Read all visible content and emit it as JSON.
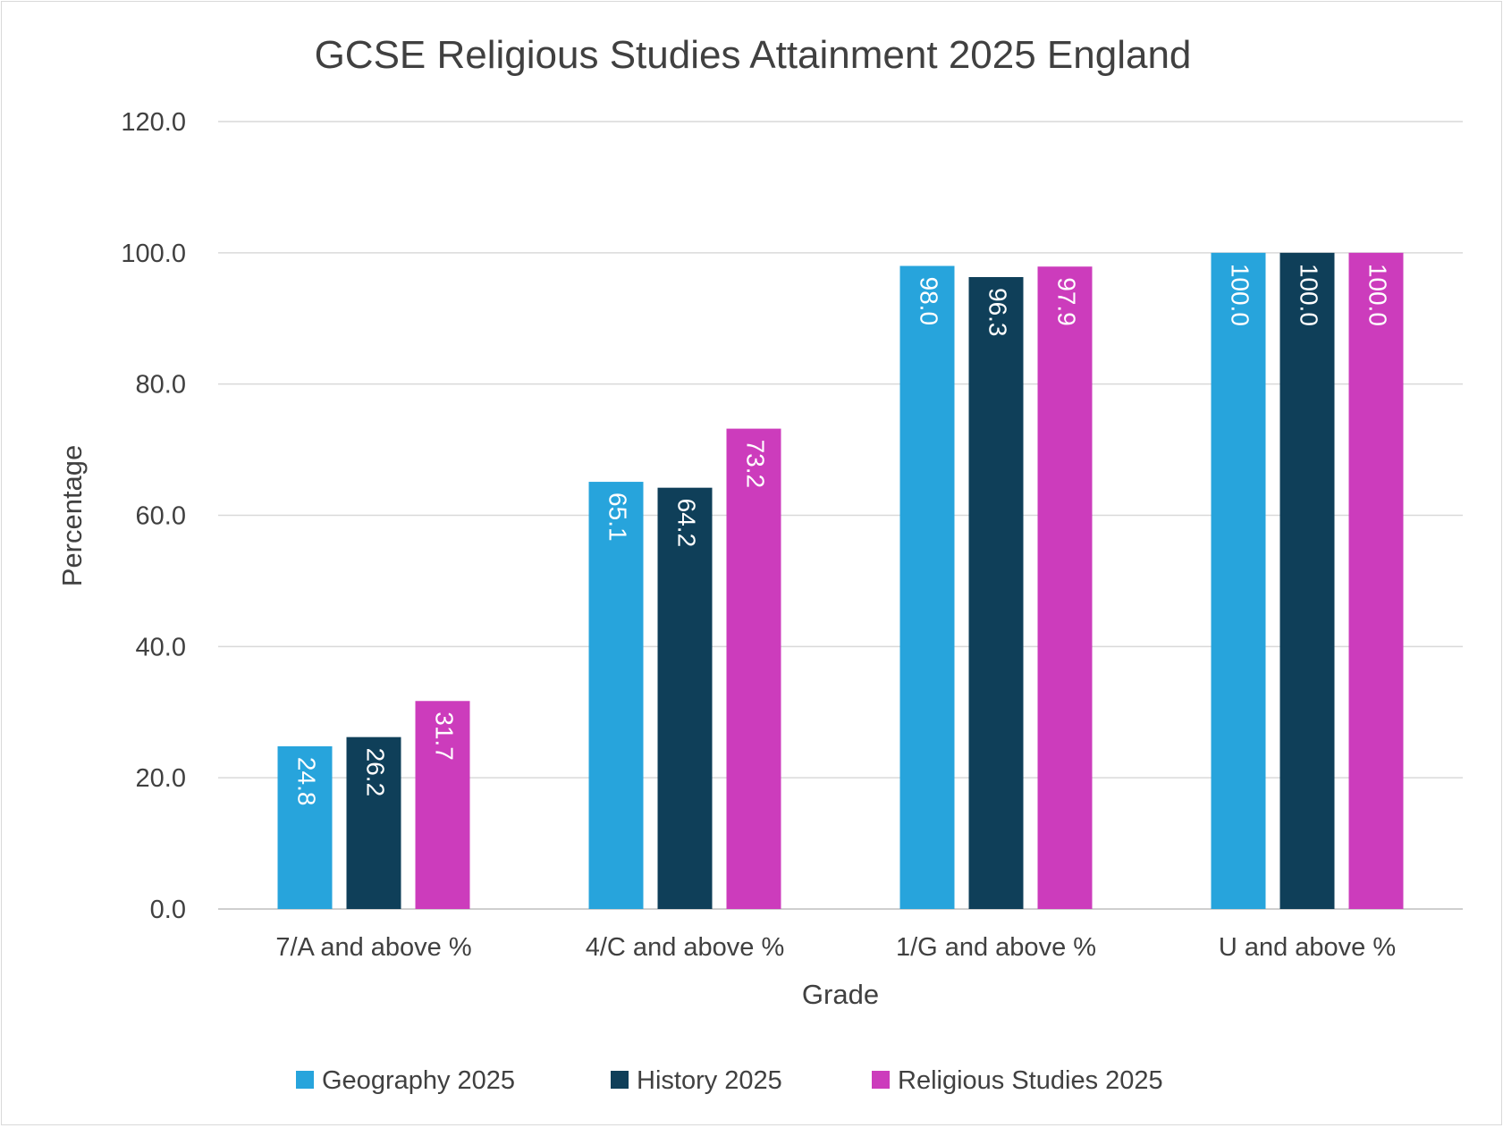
{
  "chart_data": {
    "type": "bar",
    "title": "GCSE Religious Studies Attainment 2025 England",
    "xlabel": "Grade",
    "ylabel": "Percentage",
    "ylim": [
      0,
      120
    ],
    "yticks": [
      "0.0",
      "20.0",
      "40.0",
      "60.0",
      "80.0",
      "100.0",
      "120.0"
    ],
    "ytick_values": [
      0,
      20,
      40,
      60,
      80,
      100,
      120
    ],
    "categories": [
      "7/A and above %",
      "4/C and above %",
      "1/G and above %",
      "U and above %"
    ],
    "series": [
      {
        "name": "Geography 2025",
        "color": "#27a4dc",
        "label_color": "#ffffff",
        "values": [
          24.8,
          65.1,
          98.0,
          100.0
        ],
        "labels": [
          "24.8",
          "65.1",
          "98.0",
          "100.0"
        ]
      },
      {
        "name": "History 2025",
        "color": "#0f3f59",
        "label_color": "#ffffff",
        "values": [
          26.2,
          64.2,
          96.3,
          100.0
        ],
        "labels": [
          "26.2",
          "64.2",
          "96.3",
          "100.0"
        ]
      },
      {
        "name": "Religious Studies 2025",
        "color": "#cc3cbc",
        "label_color": "#ffffff",
        "values": [
          31.7,
          73.2,
          97.9,
          100.0
        ],
        "labels": [
          "31.7",
          "73.2",
          "97.9",
          "100.0"
        ]
      }
    ],
    "grid": true,
    "legend_position": "bottom"
  }
}
